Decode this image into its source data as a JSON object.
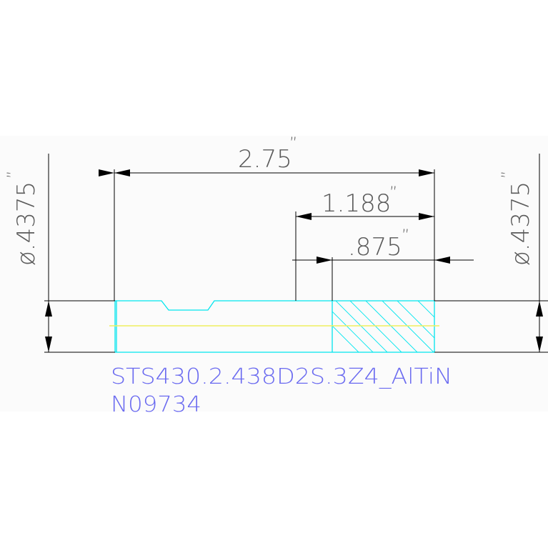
{
  "drawing": {
    "dimensions": {
      "overall_length": "2.75",
      "length_1": "1.188",
      "length_2": ".875",
      "diameter_left": "ø.4375",
      "diameter_right": "ø.4375",
      "inch_mark": "”"
    },
    "part_label": "STS430.2.438D2S.3Z4_AlTiN",
    "part_number": "N09734",
    "colors": {
      "dimension": "#000000",
      "dimension_text": "#5a5a5a",
      "part_outline": "#00e5ee",
      "centerline": "#f0f060",
      "label_text": "#6a6af0"
    }
  }
}
